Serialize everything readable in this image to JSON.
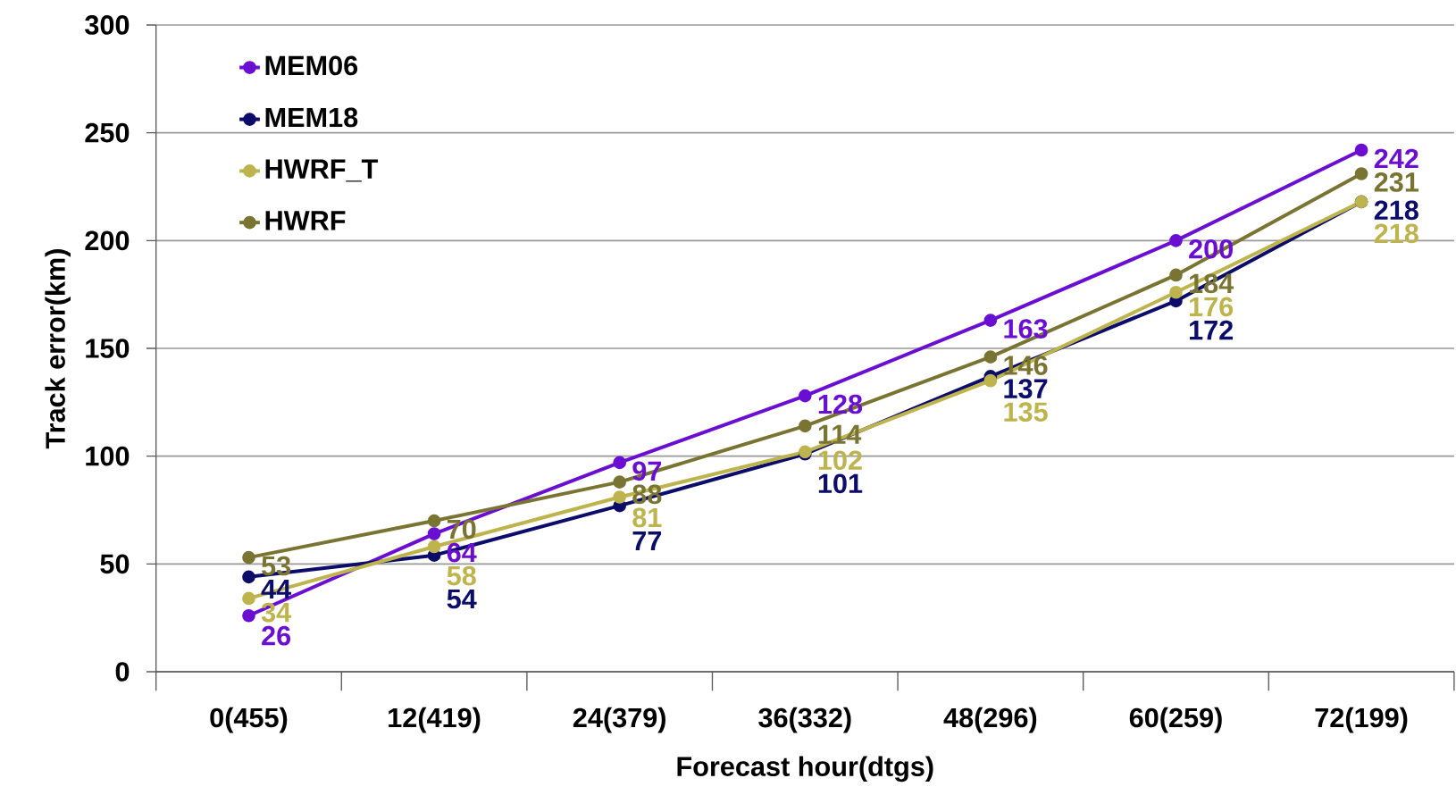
{
  "chart_data": {
    "type": "line",
    "xlabel": "Forecast hour(dtgs)",
    "ylabel": "Track error(km)",
    "categories": [
      "0(455)",
      "12(419)",
      "24(379)",
      "36(332)",
      "48(296)",
      "60(259)",
      "72(199)"
    ],
    "series": [
      {
        "name": "MEM06",
        "color": "#6a0fd2",
        "values": [
          26,
          64,
          97,
          128,
          163,
          200,
          242
        ]
      },
      {
        "name": "MEM18",
        "color": "#0c0c6a",
        "values": [
          44,
          54,
          77,
          101,
          137,
          172,
          218
        ]
      },
      {
        "name": "HWRF_T",
        "color": "#bdb44e",
        "values": [
          34,
          58,
          81,
          102,
          135,
          176,
          218
        ]
      },
      {
        "name": "HWRF",
        "color": "#7a7433",
        "values": [
          53,
          70,
          88,
          114,
          146,
          184,
          231
        ]
      }
    ],
    "ylim": [
      0,
      300
    ],
    "yticks": [
      0,
      50,
      100,
      150,
      200,
      250,
      300
    ],
    "grid": "y",
    "legend": "top left",
    "marker": "circle",
    "line_style": "solid",
    "data_labels": true
  }
}
